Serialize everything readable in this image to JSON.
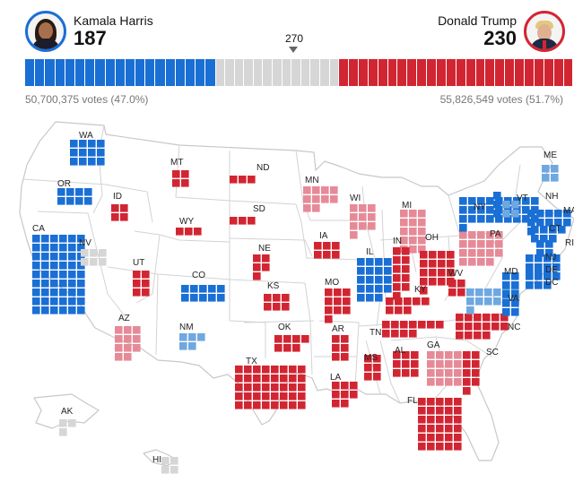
{
  "colors": {
    "dem": "#1a6fd4",
    "dem_light": "#6fa8e0",
    "rep": "#d22532",
    "rep_light": "#e68a98",
    "tossup": "#d6d6d6",
    "border": "#c8c8c8"
  },
  "harris": {
    "name": "Kamala Harris",
    "electoral_votes": "187",
    "popular": "50,700,375 votes (47.0%)"
  },
  "trump": {
    "name": "Donald Trump",
    "electoral_votes": "230",
    "popular": "55,826,549 votes (51.7%)"
  },
  "threshold": "270",
  "bar": {
    "dem_solid": 187,
    "dem_lean": 0,
    "undecided": 121,
    "rep_lean": 0,
    "rep_solid": 230
  },
  "states": [
    {
      "abbr": "WA",
      "ev": 12,
      "s": "dem"
    },
    {
      "abbr": "OR",
      "ev": 8,
      "s": "dem"
    },
    {
      "abbr": "CA",
      "ev": 54,
      "s": "dem"
    },
    {
      "abbr": "NV",
      "ev": 6,
      "s": "tossup"
    },
    {
      "abbr": "ID",
      "ev": 4,
      "s": "rep"
    },
    {
      "abbr": "MT",
      "ev": 4,
      "s": "rep"
    },
    {
      "abbr": "WY",
      "ev": 3,
      "s": "rep"
    },
    {
      "abbr": "UT",
      "ev": 6,
      "s": "rep"
    },
    {
      "abbr": "AZ",
      "ev": 11,
      "s": "rep_light"
    },
    {
      "abbr": "CO",
      "ev": 10,
      "s": "dem"
    },
    {
      "abbr": "NM",
      "ev": 5,
      "s": "dem_light"
    },
    {
      "abbr": "ND",
      "ev": 3,
      "s": "rep"
    },
    {
      "abbr": "SD",
      "ev": 3,
      "s": "rep"
    },
    {
      "abbr": "NE",
      "ev": 5,
      "s": "rep"
    },
    {
      "abbr": "KS",
      "ev": 6,
      "s": "rep"
    },
    {
      "abbr": "OK",
      "ev": 7,
      "s": "rep"
    },
    {
      "abbr": "TX",
      "ev": 40,
      "s": "rep"
    },
    {
      "abbr": "MN",
      "ev": 10,
      "s": "rep_light"
    },
    {
      "abbr": "IA",
      "ev": 6,
      "s": "rep"
    },
    {
      "abbr": "MO",
      "ev": 10,
      "s": "rep"
    },
    {
      "abbr": "AR",
      "ev": 6,
      "s": "rep"
    },
    {
      "abbr": "LA",
      "ev": 8,
      "s": "rep"
    },
    {
      "abbr": "WI",
      "ev": 10,
      "s": "rep_light"
    },
    {
      "abbr": "IL",
      "ev": 19,
      "s": "dem"
    },
    {
      "abbr": "MI",
      "ev": 15,
      "s": "rep_light"
    },
    {
      "abbr": "IN",
      "ev": 11,
      "s": "rep"
    },
    {
      "abbr": "OH",
      "ev": 17,
      "s": "rep"
    },
    {
      "abbr": "KY",
      "ev": 8,
      "s": "rep"
    },
    {
      "abbr": "TN",
      "ev": 11,
      "s": "rep"
    },
    {
      "abbr": "MS",
      "ev": 6,
      "s": "rep"
    },
    {
      "abbr": "AL",
      "ev": 9,
      "s": "rep"
    },
    {
      "abbr": "GA",
      "ev": 16,
      "s": "rep_light"
    },
    {
      "abbr": "FL",
      "ev": 30,
      "s": "rep"
    },
    {
      "abbr": "SC",
      "ev": 9,
      "s": "rep"
    },
    {
      "abbr": "NC",
      "ev": 16,
      "s": "rep"
    },
    {
      "abbr": "WV",
      "ev": 4,
      "s": "rep"
    },
    {
      "abbr": "VA",
      "ev": 13,
      "s": "dem_light"
    },
    {
      "abbr": "PA",
      "ev": 19,
      "s": "rep_light"
    },
    {
      "abbr": "NY",
      "ev": 28,
      "s": "dem"
    },
    {
      "abbr": "VT",
      "ev": 3,
      "s": "dem"
    },
    {
      "abbr": "NH",
      "ev": 4,
      "s": "dem_light"
    },
    {
      "abbr": "ME",
      "ev": 4,
      "s": "dem_light"
    },
    {
      "abbr": "MA",
      "ev": 11,
      "s": "dem"
    },
    {
      "abbr": "RI",
      "ev": 4,
      "s": "dem"
    },
    {
      "abbr": "CT",
      "ev": 7,
      "s": "dem"
    },
    {
      "abbr": "NJ",
      "ev": 14,
      "s": "dem"
    },
    {
      "abbr": "DE",
      "ev": 3,
      "s": "dem"
    },
    {
      "abbr": "MD",
      "ev": 10,
      "s": "dem"
    },
    {
      "abbr": "DC",
      "ev": 3,
      "s": "dem"
    },
    {
      "abbr": "AK",
      "ev": 3,
      "s": "tossup"
    },
    {
      "abbr": "HI",
      "ev": 4,
      "s": "tossup"
    }
  ]
}
